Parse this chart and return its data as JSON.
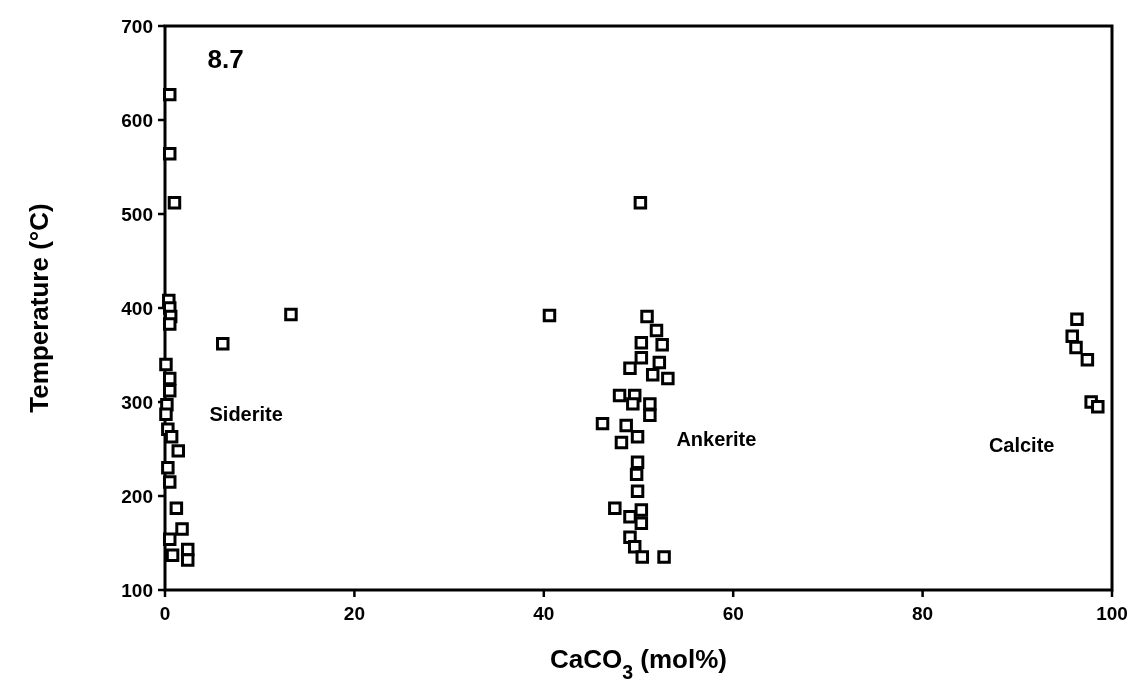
{
  "chart_data": {
    "type": "scatter",
    "xlabel": "CaCO$_{3}$ (mol%)",
    "ylabel": "Temperature (°C)",
    "xlim": [
      0,
      100
    ],
    "xticks": [
      0,
      20,
      40,
      60,
      80,
      100
    ],
    "ylim": [
      100,
      700
    ],
    "yticks": [
      100,
      200,
      300,
      400,
      500,
      600,
      700
    ],
    "grid": false,
    "marker": "square",
    "annotations": [
      "8.7",
      "Siderite",
      "Ankerite",
      "Calcite"
    ],
    "series": [
      {
        "color": "#000000",
        "x": [
          0.5,
          0.5,
          1,
          0.4,
          0.5,
          0.6,
          0.5,
          6.1,
          13.3,
          0.1,
          0.5,
          0.5,
          0.2,
          0.1,
          0.3,
          0.7,
          1.4,
          0.3,
          0.5,
          1.2,
          1.8,
          0.5,
          2.4,
          0.8,
          2.4,
          40.6,
          50.2,
          50.9,
          51.9,
          52.5,
          50.3,
          50.3,
          52.2,
          49.1,
          51.5,
          53.1,
          48.0,
          49.6,
          51.2,
          49.4,
          51.2,
          46.2,
          48.7,
          48.2,
          49.9,
          49.9,
          49.8,
          49.9,
          47.5,
          50.3,
          49.1,
          50.3,
          49.1,
          49.6,
          50.4,
          52.7,
          96.3,
          95.8,
          96.2,
          97.4,
          97.8,
          98.5
        ],
        "values": [
          627,
          564,
          512,
          408,
          400,
          391,
          383,
          362,
          393,
          340,
          325,
          312,
          297,
          287,
          271,
          263,
          248,
          230,
          215,
          187,
          165,
          154,
          143,
          137,
          132,
          392,
          512,
          391,
          376,
          361,
          363,
          347,
          342,
          336,
          329,
          325,
          307,
          307,
          298,
          298,
          286,
          277,
          275,
          257,
          263,
          236,
          223,
          205,
          187,
          185,
          178,
          171,
          156,
          146,
          135,
          135,
          388,
          370,
          358,
          345,
          300,
          295
        ]
      }
    ]
  }
}
